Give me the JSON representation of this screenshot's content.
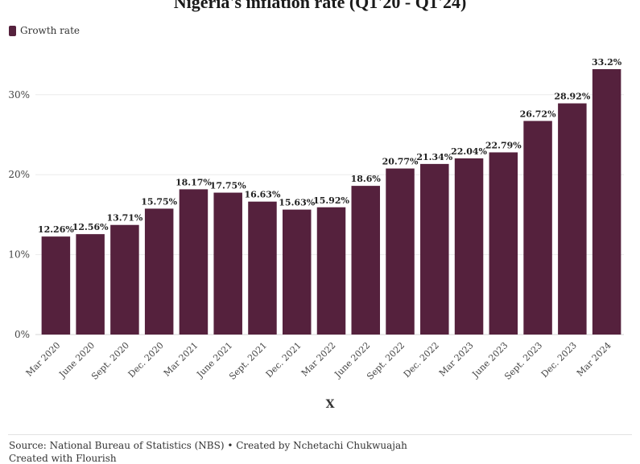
{
  "title": "Nigeria's inflation rate (Q1'20 - Q1'24)",
  "footer": {
    "source": "Source: National Bureau of Statistics (NBS) • Created by Nchetachi Chukwuajah",
    "credit": "Created with Flourish"
  },
  "colors": {
    "bar": "#55213d",
    "grid": "#ececec",
    "text": "#333333"
  },
  "chart_data": {
    "type": "bar",
    "title": "Nigeria's inflation rate (Q1'20 - Q1'24)",
    "xlabel": "X",
    "ylabel": "",
    "ylim": [
      0,
      35
    ],
    "yticks": [
      0,
      10,
      20,
      30
    ],
    "ytick_labels": [
      "0%",
      "10%",
      "20%",
      "30%"
    ],
    "grid": true,
    "legend_position": "top-left",
    "categories": [
      "Mar 2020",
      "June 2020",
      "Sept. 2020",
      "Dec. 2020",
      "Mar 2021",
      "June 2021",
      "Sept. 2021",
      "Dec. 2021",
      "Mar 2022",
      "June 2022",
      "Sept. 2022",
      "Dec. 2022",
      "Mar 2023",
      "June 2023",
      "Sept. 2023",
      "Dec. 2023",
      "Mar 2024"
    ],
    "series": [
      {
        "name": "Growth rate",
        "values": [
          12.26,
          12.56,
          13.71,
          15.75,
          18.17,
          17.75,
          16.63,
          15.63,
          15.92,
          18.6,
          20.77,
          21.34,
          22.04,
          22.79,
          26.72,
          28.92,
          33.2
        ],
        "labels": [
          "12.26%",
          "12.56%",
          "13.71%",
          "15.75%",
          "18.17%",
          "17.75%",
          "16.63%",
          "15.63%",
          "15.92%",
          "18.6%",
          "20.77%",
          "21.34%",
          "22.04%",
          "22.79%",
          "26.72%",
          "28.92%",
          "33.2%"
        ]
      }
    ]
  }
}
